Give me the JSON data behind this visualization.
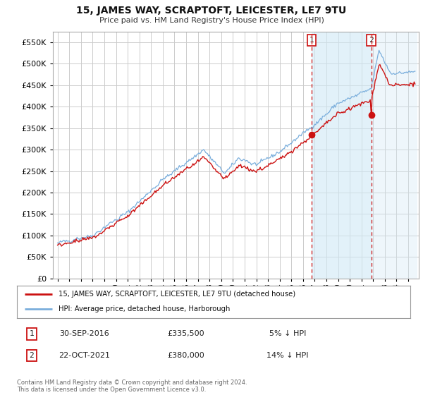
{
  "title": "15, JAMES WAY, SCRAPTOFT, LEICESTER, LE7 9TU",
  "subtitle": "Price paid vs. HM Land Registry's House Price Index (HPI)",
  "ytick_values": [
    0,
    50000,
    100000,
    150000,
    200000,
    250000,
    300000,
    350000,
    400000,
    450000,
    500000,
    550000
  ],
  "ylim": [
    0,
    575000
  ],
  "background_color": "#ffffff",
  "grid_color": "#cccccc",
  "hpi_color": "#7aaedc",
  "hpi_fill_color": "#d0e8f5",
  "price_color": "#cc1111",
  "vline_color": "#cc1111",
  "marker1_date": 2016.75,
  "marker2_date": 2021.83,
  "marker1_value": 335500,
  "marker2_value": 380000,
  "legend1": "15, JAMES WAY, SCRAPTOFT, LEICESTER, LE7 9TU (detached house)",
  "legend2": "HPI: Average price, detached house, Harborough",
  "annotation1_num": "1",
  "annotation1_date": "30-SEP-2016",
  "annotation1_price": "£335,500",
  "annotation1_pct": "5% ↓ HPI",
  "annotation2_num": "2",
  "annotation2_date": "22-OCT-2021",
  "annotation2_price": "£380,000",
  "annotation2_pct": "14% ↓ HPI",
  "copyright": "Contains HM Land Registry data © Crown copyright and database right 2024.\nThis data is licensed under the Open Government Licence v3.0."
}
